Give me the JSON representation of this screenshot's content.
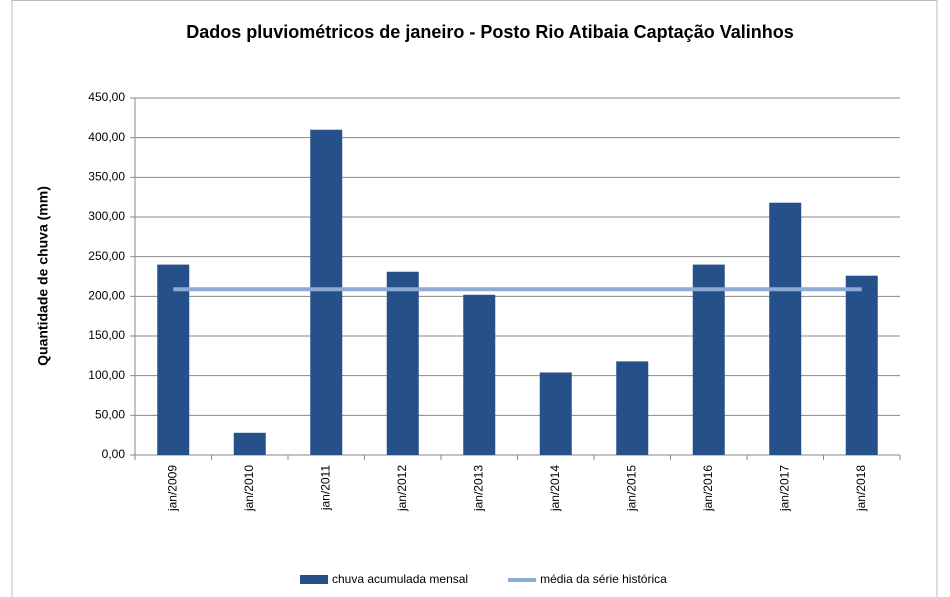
{
  "chart_data": {
    "type": "bar",
    "title": "Dados pluviométricos de janeiro - Posto Rio Atibaia Captação Valinhos",
    "y_label": "Quantidade de chuva (mm)",
    "categories": [
      "jan/2009",
      "jan/2010",
      "jan/2011",
      "jan/2012",
      "jan/2013",
      "jan/2014",
      "jan/2015",
      "jan/2016",
      "jan/2017",
      "jan/2018"
    ],
    "series": [
      {
        "name": "chuva acumulada mensal",
        "type": "bar",
        "color": "#26508a",
        "values": [
          240,
          28,
          410,
          231,
          202,
          104,
          118,
          240,
          318,
          226
        ]
      },
      {
        "name": "média da série histórica",
        "type": "line",
        "color": "#8eaad5",
        "values": [
          209,
          209,
          209,
          209,
          209,
          209,
          209,
          209,
          209,
          209
        ]
      }
    ],
    "ylim": [
      0,
      450
    ],
    "yticks": [
      {
        "value": 0,
        "label": "0,00"
      },
      {
        "value": 50,
        "label": "50,00"
      },
      {
        "value": 100,
        "label": "100,00"
      },
      {
        "value": 150,
        "label": "150,00"
      },
      {
        "value": 200,
        "label": "200,00"
      },
      {
        "value": 250,
        "label": "250,00"
      },
      {
        "value": 300,
        "label": "300,00"
      },
      {
        "value": 350,
        "label": "350,00"
      },
      {
        "value": 400,
        "label": "400,00"
      },
      {
        "value": 450,
        "label": "450,00"
      }
    ],
    "grid": true,
    "legend": "bottom"
  }
}
